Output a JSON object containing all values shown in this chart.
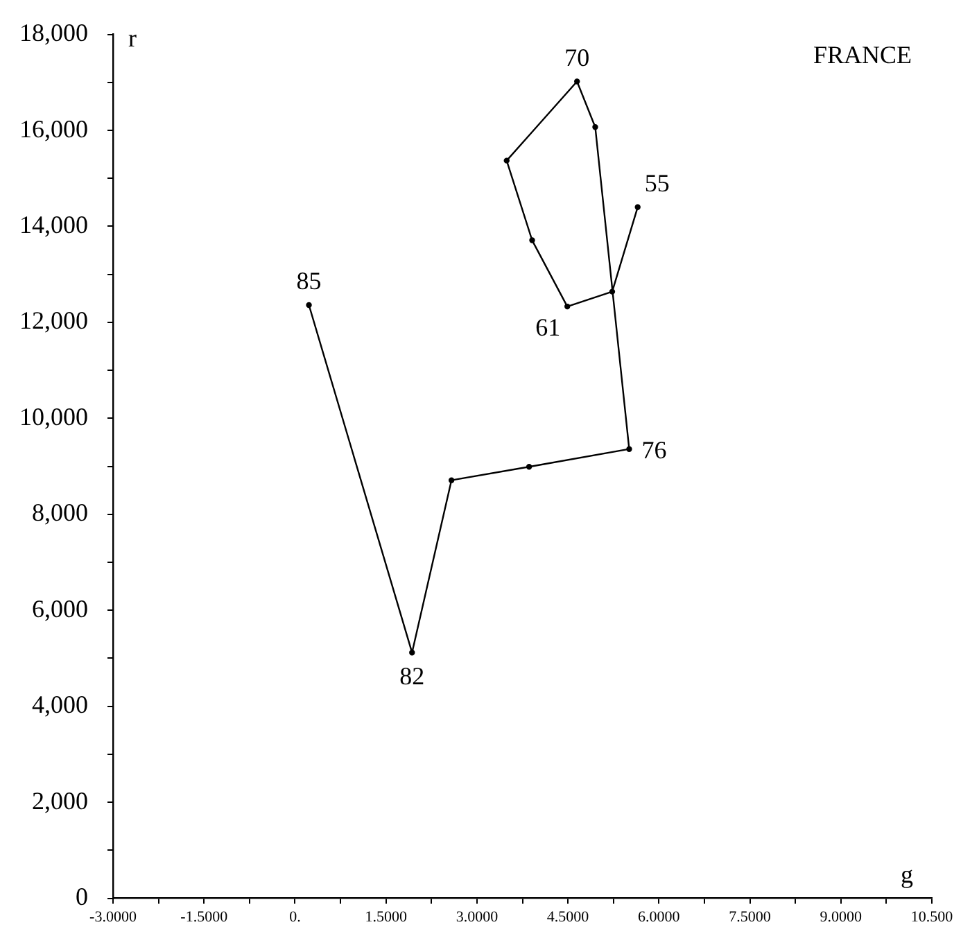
{
  "chart_data": {
    "type": "line",
    "title": "FRANCE",
    "xlabel": "g",
    "ylabel": "r",
    "x": [
      5.65,
      5.23,
      4.49,
      3.91,
      3.49,
      4.65,
      4.95,
      5.51,
      3.86,
      2.58,
      1.93,
      0.23
    ],
    "series": [
      {
        "color": "#000000",
        "values": [
          14400,
          12640,
          12330,
          13710,
          15370,
          17020,
          16070,
          9360,
          8990,
          8710,
          5120,
          12360
        ]
      }
    ],
    "xlim": [
      -3,
      10.5
    ],
    "xticks": [
      {
        "value": -3,
        "label": "-3.0000"
      },
      {
        "value": -2.25,
        "label": null
      },
      {
        "value": -1.5,
        "label": "-1.5000"
      },
      {
        "value": -0.75,
        "label": null
      },
      {
        "value": 0,
        "label": "0."
      },
      {
        "value": 0.75,
        "label": null
      },
      {
        "value": 1.5,
        "label": "1.5000"
      },
      {
        "value": 2.25,
        "label": null
      },
      {
        "value": 3,
        "label": "3.0000"
      },
      {
        "value": 3.75,
        "label": null
      },
      {
        "value": 4.5,
        "label": "4.5000"
      },
      {
        "value": 5.25,
        "label": null
      },
      {
        "value": 6,
        "label": "6.0000"
      },
      {
        "value": 6.75,
        "label": null
      },
      {
        "value": 7.5,
        "label": "7.5000"
      },
      {
        "value": 8.25,
        "label": null
      },
      {
        "value": 9,
        "label": "9.0000"
      },
      {
        "value": 9.75,
        "label": null
      },
      {
        "value": 10.5,
        "label": "10.500"
      }
    ],
    "ylim": [
      0,
      18000
    ],
    "yticks": [
      0,
      {
        "value": 1000,
        "label": null
      },
      {
        "value": 2000,
        "label": "2,000"
      },
      {
        "value": 3000,
        "label": null
      },
      {
        "value": 4000,
        "label": "4,000"
      },
      {
        "value": 5000,
        "label": null
      },
      {
        "value": 6000,
        "label": "6,000"
      },
      {
        "value": 7000,
        "label": null
      },
      {
        "value": 8000,
        "label": "8,000"
      },
      {
        "value": 9000,
        "label": null
      },
      {
        "value": 10000,
        "label": "10,000"
      },
      {
        "value": 11000,
        "label": null
      },
      {
        "value": 12000,
        "label": "12,000"
      },
      {
        "value": 13000,
        "label": null
      },
      {
        "value": 14000,
        "label": "14,000"
      },
      {
        "value": 15000,
        "label": null
      },
      {
        "value": 16000,
        "label": "16,000"
      },
      {
        "value": 17000,
        "label": null
      },
      {
        "value": 18000,
        "label": "18,000"
      }
    ],
    "annotations": [
      {
        "text": "55",
        "x": 5.65,
        "y": 14400
      },
      {
        "text": "61",
        "x": 4.49,
        "y": 12330
      },
      {
        "text": "70",
        "x": 4.65,
        "y": 17020
      },
      {
        "text": "76",
        "x": 5.51,
        "y": 9360
      },
      {
        "text": "82",
        "x": 1.93,
        "y": 5120
      },
      {
        "text": "85",
        "x": 0.23,
        "y": 12360
      }
    ],
    "grid": false,
    "legend": false,
    "marker": "circle",
    "line_style": "solid"
  }
}
